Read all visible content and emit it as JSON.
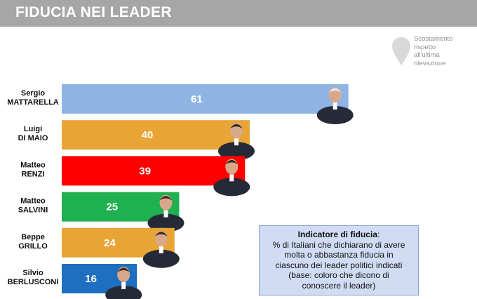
{
  "header": {
    "title": "FIDUCIA NEI LEADER"
  },
  "note": {
    "icon": "map-pin-icon",
    "lines": [
      "Scostamento",
      "rispetto",
      "all'ultima",
      "rilevazione"
    ]
  },
  "info": {
    "title": "Indicatore di fiducia",
    "title_suffix": ":",
    "lines": [
      "% di Italiani che dichiarano di avere",
      "molta o abbastanza fiducia in",
      "ciascuno dei leader politici indicati",
      "(base: coloro che dicono di",
      "conoscere il leader)"
    ]
  },
  "chart_data": {
    "type": "bar",
    "orientation": "horizontal",
    "xlim": [
      0,
      100
    ],
    "grid": false,
    "categories": [
      [
        "Sergio",
        "MATTARELLA"
      ],
      [
        "Luigi",
        "DI MAIO"
      ],
      [
        "Matteo",
        "RENZI"
      ],
      [
        "Matteo",
        "SALVINI"
      ],
      [
        "Beppe",
        "GRILLO"
      ],
      [
        "Silvio",
        "BERLUSCONI"
      ]
    ],
    "values": [
      61,
      40,
      39,
      25,
      24,
      16
    ],
    "colors": [
      "#8eb4e3",
      "#e8a435",
      "#ff0000",
      "#1fb14f",
      "#e8a435",
      "#1f6fc0"
    ]
  }
}
